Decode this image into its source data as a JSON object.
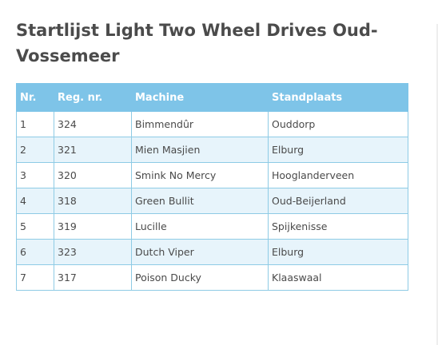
{
  "page": {
    "title": "Startlijst Light Two Wheel Drives Oud-Vossemeer"
  },
  "table": {
    "columns": [
      "Nr.",
      "Reg. nr.",
      "Machine",
      "Standplaats"
    ],
    "rows": [
      {
        "nr": "1",
        "reg": "324",
        "machine": "Bimmendûr",
        "standplaats": "Ouddorp"
      },
      {
        "nr": "2",
        "reg": "321",
        "machine": "Mien Masjien",
        "standplaats": "Elburg"
      },
      {
        "nr": "3",
        "reg": "320",
        "machine": "Smink No Mercy",
        "standplaats": "Hooglanderveen"
      },
      {
        "nr": "4",
        "reg": "318",
        "machine": "Green Bullit",
        "standplaats": "Oud-Beijerland"
      },
      {
        "nr": "5",
        "reg": "319",
        "machine": "Lucille",
        "standplaats": "Spijkenisse"
      },
      {
        "nr": "6",
        "reg": "323",
        "machine": "Dutch Viper",
        "standplaats": "Elburg"
      },
      {
        "nr": "7",
        "reg": "317",
        "machine": "Poison Ducky",
        "standplaats": "Klaaswaal"
      }
    ]
  },
  "colors": {
    "header_bg": "#7ec4e8",
    "stripe_bg": "#e7f4fb",
    "border": "#8ecbe5",
    "title_text": "#4b4b4b"
  }
}
